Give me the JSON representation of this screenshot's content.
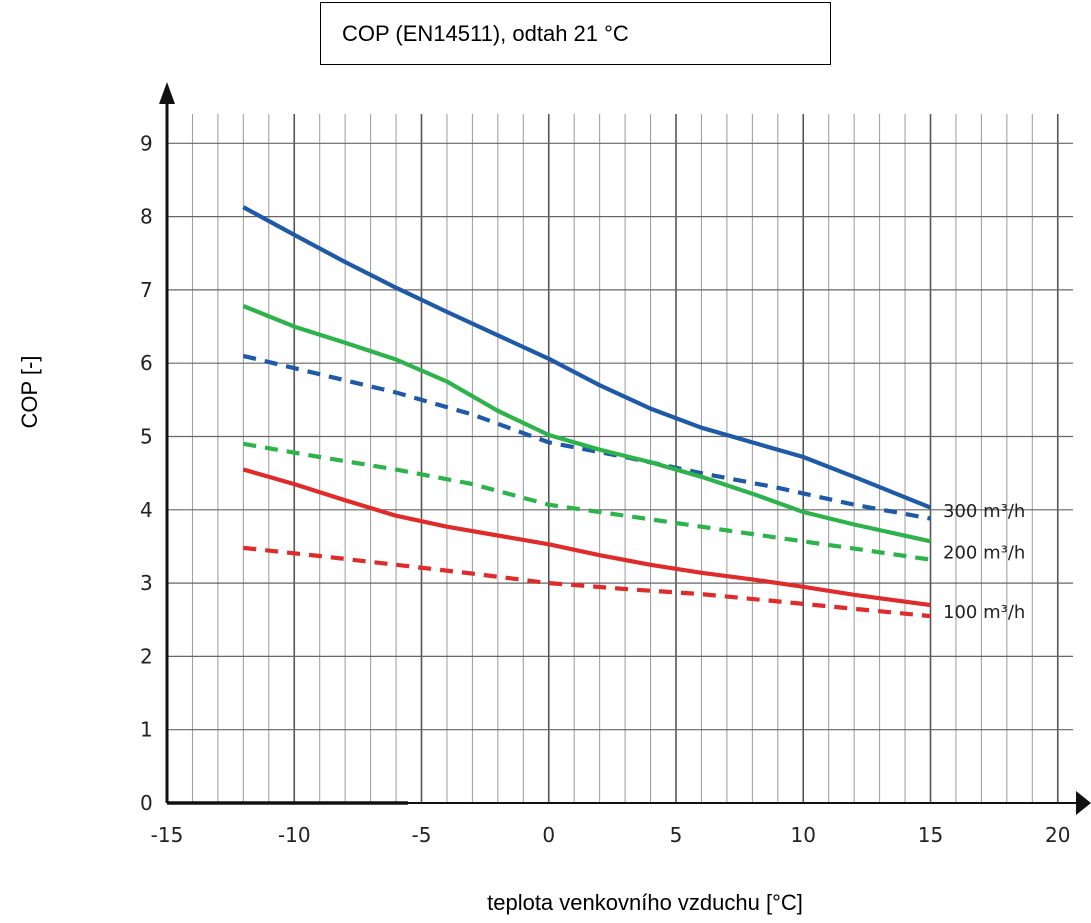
{
  "chart_data": {
    "type": "line",
    "title": "COP (EN14511), odtah 21 °C",
    "xlabel": "teplota venkovního vzduchu [°C]",
    "ylabel": "COP [-]",
    "xlim": [
      -15,
      20
    ],
    "ylim": [
      0,
      9
    ],
    "x_ticks": [
      -15,
      -10,
      -5,
      0,
      5,
      10,
      15,
      20
    ],
    "y_ticks": [
      0,
      1,
      2,
      3,
      4,
      5,
      6,
      7,
      8,
      9
    ],
    "x_tick_labels": [
      "-15",
      "-10",
      "-5",
      "0",
      "5",
      "10",
      "15",
      "20"
    ],
    "y_tick_labels": [
      "0",
      "1",
      "2",
      "3",
      "4",
      "5",
      "6",
      "7",
      "8",
      "9"
    ],
    "grid": true,
    "series_labels": [
      "300 m³/h",
      "200 m³/h",
      "100 m³/h"
    ],
    "series": [
      {
        "group": "300 m³/h",
        "color": "#1f5aa8",
        "style": "solid",
        "x": [
          -12,
          -10,
          -8,
          -6,
          -4,
          -2,
          0,
          2,
          4,
          6,
          8,
          10,
          12,
          15
        ],
        "y": [
          8.13,
          7.75,
          7.38,
          7.03,
          6.7,
          6.38,
          6.06,
          5.7,
          5.38,
          5.12,
          4.92,
          4.72,
          4.45,
          4.03
        ]
      },
      {
        "group": "300 m³/h",
        "color": "#1f5aa8",
        "style": "dashed",
        "x": [
          -12,
          -9,
          -6,
          -3,
          0,
          3,
          6,
          9,
          12,
          15
        ],
        "y": [
          6.1,
          5.85,
          5.6,
          5.3,
          4.92,
          4.72,
          4.5,
          4.3,
          4.07,
          3.88
        ]
      },
      {
        "group": "200 m³/h",
        "color": "#2db34a",
        "style": "solid",
        "x": [
          -12,
          -10,
          -8,
          -6,
          -4,
          -2,
          0,
          2,
          4,
          6,
          8,
          10,
          12,
          15
        ],
        "y": [
          6.78,
          6.5,
          6.28,
          6.05,
          5.75,
          5.35,
          5.02,
          4.82,
          4.65,
          4.45,
          4.22,
          3.97,
          3.8,
          3.57
        ]
      },
      {
        "group": "200 m³/h",
        "color": "#2db34a",
        "style": "dashed",
        "x": [
          -12,
          -9,
          -6,
          -3,
          0,
          3,
          6,
          9,
          12,
          15
        ],
        "y": [
          4.9,
          4.72,
          4.55,
          4.35,
          4.07,
          3.92,
          3.77,
          3.62,
          3.47,
          3.32
        ]
      },
      {
        "group": "100 m³/h",
        "color": "#e02b2b",
        "style": "solid",
        "x": [
          -12,
          -10,
          -8,
          -6,
          -4,
          -2,
          0,
          2,
          4,
          6,
          8,
          10,
          12,
          15
        ],
        "y": [
          4.55,
          4.35,
          4.13,
          3.92,
          3.77,
          3.65,
          3.53,
          3.38,
          3.25,
          3.14,
          3.05,
          2.95,
          2.84,
          2.7
        ]
      },
      {
        "group": "100 m³/h",
        "color": "#e02b2b",
        "style": "dashed",
        "x": [
          -12,
          -9,
          -6,
          -3,
          0,
          3,
          6,
          9,
          12,
          15
        ],
        "y": [
          3.48,
          3.37,
          3.25,
          3.13,
          3.0,
          2.92,
          2.85,
          2.75,
          2.65,
          2.55
        ]
      }
    ]
  }
}
